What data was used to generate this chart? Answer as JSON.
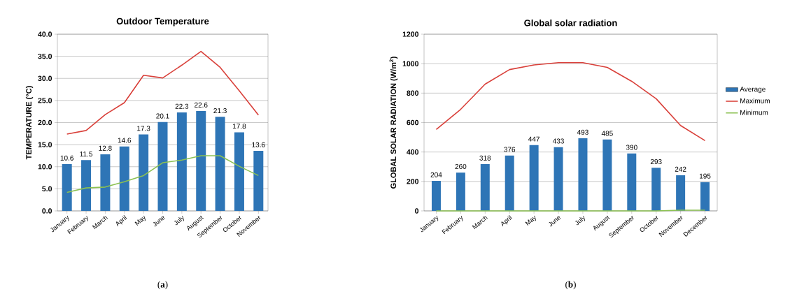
{
  "chart_data": [
    {
      "type": "bar",
      "title": "Outdoor Temperature",
      "ylabel": "TEMPERATURE (°C)",
      "categories": [
        "January",
        "February",
        "March",
        "April",
        "May",
        "June",
        "July",
        "August",
        "September",
        "October",
        "November"
      ],
      "series": [
        {
          "color": "#2e75b6",
          "data_labels": true,
          "values": [
            10.6,
            11.5,
            12.8,
            14.6,
            17.3,
            20.1,
            22.3,
            22.6,
            21.3,
            17.8,
            13.6
          ]
        },
        {
          "type": "line",
          "color": "#d9403a",
          "values": [
            17.4,
            18.2,
            21.8,
            24.5,
            30.7,
            30.1,
            33.0,
            36.1,
            32.5,
            27.2,
            21.7
          ]
        },
        {
          "type": "line",
          "color": "#8cc152",
          "values": [
            4.2,
            5.2,
            5.4,
            6.6,
            8.0,
            10.9,
            11.5,
            12.5,
            12.5,
            10.1,
            8.0
          ]
        }
      ],
      "ylim": [
        0,
        40
      ],
      "yticks": [
        {
          "value": 0,
          "label": "0.0"
        },
        {
          "value": 5,
          "label": "5.0"
        },
        {
          "value": 10,
          "label": "10.0"
        },
        {
          "value": 15,
          "label": "15.0"
        },
        {
          "value": 20,
          "label": "20.0"
        },
        {
          "value": 25,
          "label": "25.0"
        },
        {
          "value": 30,
          "label": "30.0"
        },
        {
          "value": 35,
          "label": "35.0"
        },
        {
          "value": 40,
          "label": "40.0"
        }
      ],
      "grid": "y",
      "legend": false,
      "marker": "none",
      "annotations": [
        "(**a**)"
      ]
    },
    {
      "type": "bar",
      "title": "Global solar radiation",
      "ylabel": "GLOBAL SOLAR RADIATION (W/m$^{2}$)",
      "categories": [
        "January",
        "February",
        "March",
        "April",
        "May",
        "June",
        "July",
        "August",
        "September",
        "October",
        "November",
        "December"
      ],
      "series": [
        {
          "name": "Average",
          "color": "#2e75b6",
          "data_labels": true,
          "values": [
            204,
            260,
            318,
            376,
            447,
            433,
            493,
            485,
            390,
            293,
            242,
            195
          ]
        },
        {
          "type": "line",
          "name": "Maximum",
          "color": "#d9403a",
          "values": [
            553,
            690,
            861,
            960,
            991,
            1007,
            1007,
            975,
            880,
            762,
            580,
            477
          ]
        },
        {
          "type": "line",
          "name": "Minimum",
          "color": "#8cc152",
          "values": [
            0,
            0,
            0,
            0,
            0,
            0,
            0,
            0,
            0,
            0,
            5,
            5
          ]
        }
      ],
      "ylim": [
        0,
        1200
      ],
      "yticks": [
        0,
        200,
        400,
        600,
        800,
        1000,
        1200
      ],
      "grid": "y",
      "legend": "right",
      "marker": "none",
      "annotations": [
        "(**b**)"
      ]
    }
  ]
}
